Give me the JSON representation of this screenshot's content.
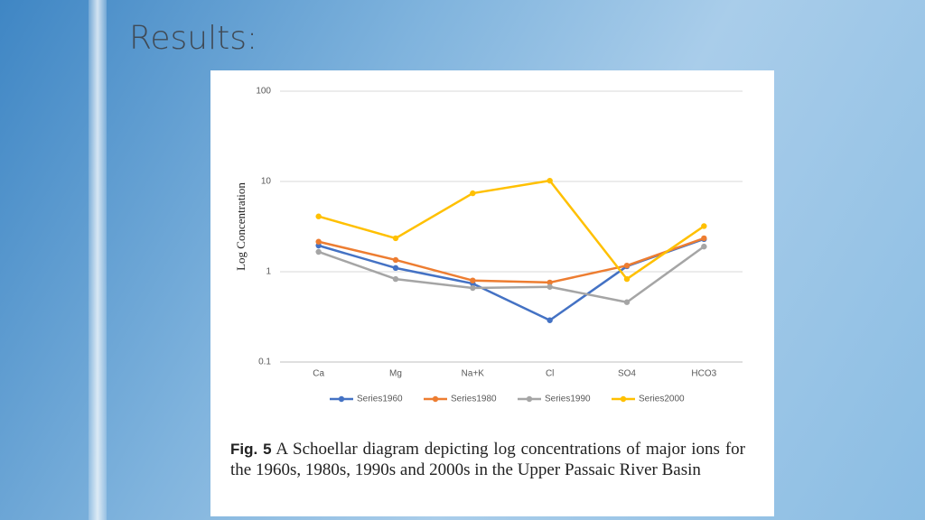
{
  "slide_title": "Results:",
  "chart_data": {
    "type": "line",
    "y_label": "Log Concentration",
    "categories": [
      "Ca",
      "Mg",
      "Na+K",
      "Cl",
      "SO4",
      "HCO3"
    ],
    "series": [
      {
        "name": "Series1960",
        "color": "#4472c4",
        "values": [
          1.95,
          1.1,
          0.74,
          0.29,
          1.15,
          2.3
        ]
      },
      {
        "name": "Series1980",
        "color": "#ed7d31",
        "values": [
          2.15,
          1.35,
          0.8,
          0.76,
          1.17,
          2.35
        ]
      },
      {
        "name": "Series1990",
        "color": "#a5a5a5",
        "values": [
          1.66,
          0.83,
          0.66,
          0.68,
          0.46,
          1.9
        ]
      },
      {
        "name": "Series2000",
        "color": "#ffc000",
        "values": [
          4.1,
          2.35,
          7.4,
          10.2,
          0.83,
          3.2
        ]
      }
    ],
    "ylim": [
      0.1,
      100
    ],
    "yticks": [
      0.1,
      1,
      10,
      100
    ],
    "log_scale": true,
    "grid": true,
    "legend": "bottom"
  },
  "caption": {
    "label": "Fig. 5",
    "text": "A Schoellar diagram depicting log concentrations of major ions for the 1960s, 1980s, 1990s and 2000s in the Upper Passaic River Basin"
  }
}
